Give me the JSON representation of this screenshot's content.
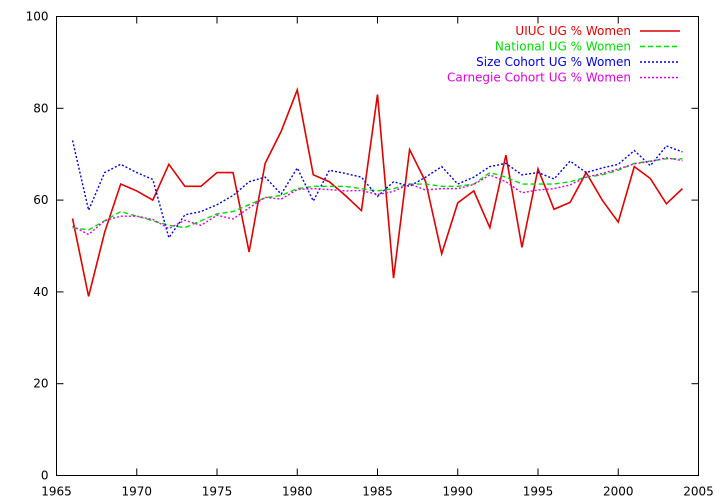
{
  "chart_data": {
    "type": "line",
    "title": "",
    "xlabel": "",
    "ylabel": "",
    "xlim": [
      1965,
      2005
    ],
    "ylim": [
      0,
      100
    ],
    "xticks": [
      1965,
      1970,
      1975,
      1980,
      1985,
      1990,
      1995,
      2000,
      2005
    ],
    "yticks": [
      0,
      20,
      40,
      60,
      80,
      100
    ],
    "grid": false,
    "legend_position": "top-right",
    "x": [
      1966,
      1967,
      1968,
      1969,
      1970,
      1971,
      1972,
      1973,
      1974,
      1975,
      1976,
      1977,
      1978,
      1979,
      1980,
      1981,
      1982,
      1983,
      1984,
      1985,
      1986,
      1987,
      1988,
      1989,
      1990,
      1991,
      1992,
      1993,
      1994,
      1995,
      1996,
      1997,
      1998,
      1999,
      2000,
      2001,
      2002,
      2003,
      2004
    ],
    "series": [
      {
        "name": "UIUC UG % Women",
        "color": "#e00000",
        "dash": "solid",
        "values": [
          56,
          39,
          53,
          63.5,
          62,
          60,
          67.8,
          63,
          63,
          66,
          66,
          48.7,
          68,
          75,
          84,
          65.5,
          64,
          61,
          57.7,
          83,
          43,
          71,
          64,
          48.3,
          59.4,
          62,
          54,
          69.8,
          49.7,
          66.8,
          58,
          59.5,
          66,
          60,
          55.2,
          67.3,
          64.7,
          59.2,
          62.5
        ]
      },
      {
        "name": "National UG % Women",
        "color": "#00dd00",
        "dash": "dashed",
        "values": [
          54,
          53.5,
          55.5,
          57.5,
          56.5,
          55.5,
          54.5,
          54,
          55.5,
          57,
          57.5,
          59,
          60.5,
          61,
          62.5,
          63,
          63,
          63,
          62.5,
          62,
          62.5,
          63.5,
          63.5,
          63,
          63,
          63.5,
          66,
          65,
          63.5,
          63.5,
          63.5,
          64,
          65,
          65.5,
          66.5,
          68,
          68.5,
          69,
          69
        ]
      },
      {
        "name": "Size Cohort UG % Women",
        "color": "#0000dd",
        "dash": "dotted",
        "values": [
          73,
          57.8,
          66,
          67.8,
          66,
          64.5,
          51.8,
          56.8,
          57.5,
          59,
          61,
          64,
          65,
          61.3,
          67,
          59.8,
          66.5,
          65.8,
          65,
          60.8,
          64,
          63,
          65,
          67.3,
          63.5,
          65,
          67.3,
          68,
          65.5,
          66,
          64.6,
          68.5,
          66,
          67,
          67.8,
          70.8,
          67.5,
          71.8,
          70.5
        ]
      },
      {
        "name": "Carnegie Cohort UG % Women",
        "color": "#dd00dd",
        "dash": "dotted",
        "values": [
          54.3,
          52.5,
          55.5,
          56.5,
          56.5,
          55.8,
          53.8,
          55.6,
          54.5,
          56.7,
          55.9,
          58.3,
          60.6,
          60.2,
          62.3,
          62.5,
          62.3,
          62,
          62.1,
          61.2,
          61.9,
          63.5,
          62.2,
          62.5,
          62.5,
          63.4,
          65.5,
          64,
          61.6,
          62.2,
          62.5,
          63.3,
          65,
          65.8,
          66.8,
          67.9,
          68.4,
          69.2,
          68.6
        ]
      }
    ]
  }
}
